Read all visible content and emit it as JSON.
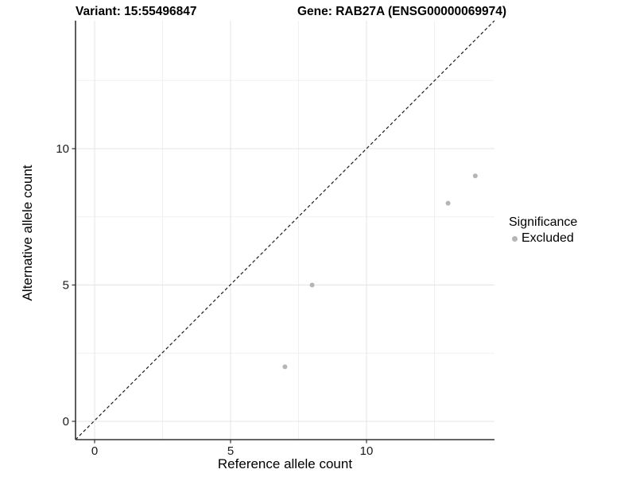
{
  "header": {
    "variant_title": "Variant: 15:55496847",
    "gene_title": "Gene: RAB27A (ENSG00000069974)"
  },
  "chart_data": {
    "type": "scatter",
    "xlabel": "Reference allele count",
    "ylabel": "Alternative allele count",
    "xlim": [
      -0.7,
      14.7
    ],
    "ylim": [
      -0.7,
      14.7
    ],
    "x_major_ticks": [
      0,
      5,
      10
    ],
    "y_major_ticks": [
      0,
      5,
      10
    ],
    "x_minor_ticks": [
      2.5,
      7.5,
      12.5
    ],
    "y_minor_ticks": [
      2.5,
      7.5,
      12.5
    ],
    "grid": "major and minor gridlines on white background",
    "reference_line": {
      "type": "identity y=x",
      "style": "dashed",
      "color": "#1a1a1a"
    },
    "series": [
      {
        "name": "Excluded",
        "color": "#b5b5b5",
        "points": [
          {
            "x": 7,
            "y": 2
          },
          {
            "x": 8,
            "y": 5
          },
          {
            "x": 13,
            "y": 8
          },
          {
            "x": 14,
            "y": 9
          }
        ]
      }
    ],
    "legend": {
      "title": "Significance",
      "position": "right",
      "items": [
        {
          "label": "Excluded",
          "color": "#b5b5b5",
          "marker": "circle"
        }
      ]
    }
  },
  "colors": {
    "background": "#ffffff",
    "grid_major": "#e4e4e4",
    "grid_minor": "#f0f0f0",
    "axis_line": "#333333",
    "tick_label": "#1a1a1a",
    "point": "#b5b5b5"
  }
}
